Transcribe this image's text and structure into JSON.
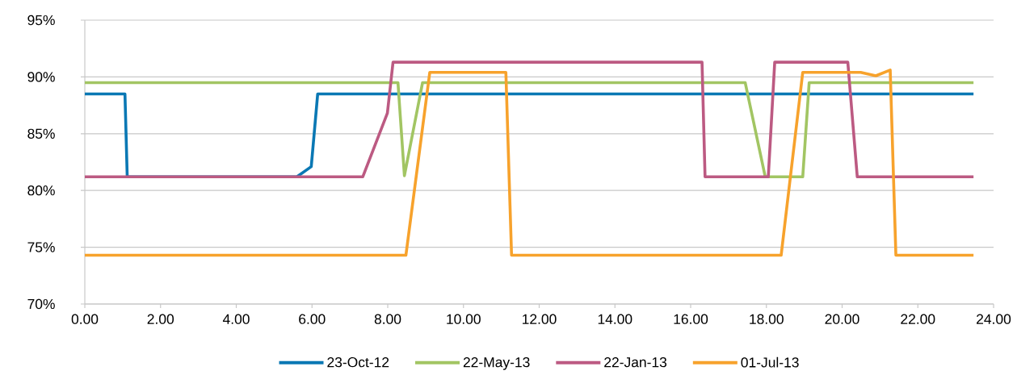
{
  "chart_data": {
    "type": "line",
    "xlim": [
      0,
      24
    ],
    "ylim": [
      70,
      95
    ],
    "xticks": [
      {
        "value": 0,
        "label": "0.00"
      },
      {
        "value": 2,
        "label": "2.00"
      },
      {
        "value": 4,
        "label": "4.00"
      },
      {
        "value": 6,
        "label": "6.00"
      },
      {
        "value": 8,
        "label": "8.00"
      },
      {
        "value": 10,
        "label": "10.00"
      },
      {
        "value": 12,
        "label": "12.00"
      },
      {
        "value": 14,
        "label": "14.00"
      },
      {
        "value": 16,
        "label": "16.00"
      },
      {
        "value": 18,
        "label": "18.00"
      },
      {
        "value": 20,
        "label": "20.00"
      },
      {
        "value": 22,
        "label": "22.00"
      },
      {
        "value": 24,
        "label": "24.00"
      }
    ],
    "yticks": [
      {
        "value": 70,
        "label": "70%"
      },
      {
        "value": 75,
        "label": "75%"
      },
      {
        "value": 80,
        "label": "80%"
      },
      {
        "value": 85,
        "label": "85%"
      },
      {
        "value": 90,
        "label": "90%"
      },
      {
        "value": 95,
        "label": "95%"
      }
    ],
    "grid": "y",
    "legend": "bottom",
    "marker": "none",
    "line_style": "solid",
    "series": [
      {
        "name": "23-Oct-12",
        "color": "#0a78b4",
        "x": [
          0,
          1.06,
          1.12,
          5.6,
          5.98,
          6.15,
          23.47
        ],
        "values": [
          88.5,
          88.5,
          81.2,
          81.2,
          82.1,
          88.5,
          88.5
        ]
      },
      {
        "name": "22-May-13",
        "color": "#a2c563",
        "x": [
          0,
          8.27,
          8.44,
          8.92,
          17.44,
          17.97,
          18.96,
          19.13,
          23.47
        ],
        "values": [
          89.5,
          89.5,
          81.3,
          89.5,
          89.5,
          81.2,
          81.2,
          89.5,
          89.5
        ]
      },
      {
        "name": "22-Jan-13",
        "color": "#bc5a82",
        "x": [
          0,
          7.34,
          7.99,
          8.14,
          16.3,
          16.38,
          18.05,
          18.22,
          20.15,
          20.4,
          23.47
        ],
        "values": [
          81.2,
          81.2,
          86.8,
          91.3,
          91.3,
          81.2,
          81.2,
          91.3,
          91.3,
          81.2,
          81.2
        ]
      },
      {
        "name": "01-Jul-13",
        "color": "#f7a22c",
        "x": [
          0,
          8.48,
          9.11,
          11.12,
          11.27,
          18.39,
          18.96,
          20.49,
          20.89,
          21.27,
          21.42,
          23.47
        ],
        "values": [
          74.3,
          74.3,
          90.4,
          90.4,
          74.3,
          74.3,
          90.4,
          90.4,
          90.1,
          90.6,
          74.3,
          74.3
        ]
      }
    ]
  }
}
